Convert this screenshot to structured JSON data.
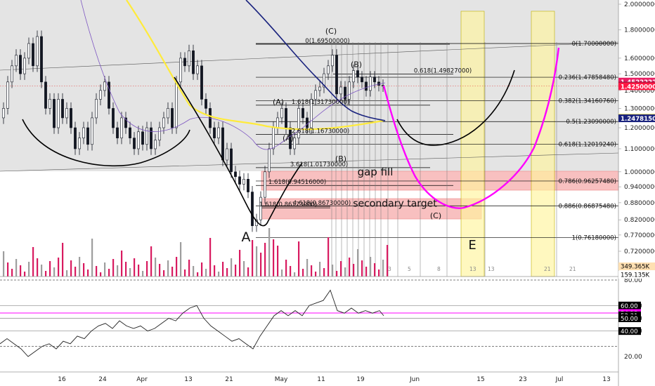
{
  "chart_data": {
    "type": "candlestick",
    "scale": "log",
    "price_axis": {
      "ticks": [
        "2.00000000",
        "1.80000000",
        "1.60000000",
        "1.50000000",
        "1.40000000",
        "1.30000000",
        "1.20000000",
        "1.10000000",
        "1.00000000",
        "0.94000000",
        "0.88000000",
        "0.82000000",
        "0.77000000",
        "0.72000000",
        "0.68000000"
      ],
      "badges": [
        {
          "text": "1.45222222",
          "value": 1.45222222,
          "bg": "#e91e63",
          "fg": "#ffffff"
        },
        {
          "text": "1.42720000",
          "value": 1.4272,
          "bg": "#131722",
          "fg": "#ffffff"
        },
        {
          "text": "1.42500000",
          "value": 1.425,
          "bg": "#ff1744",
          "fg": "#ffffff"
        },
        {
          "text": "1.25043000",
          "value": 1.25043,
          "bg": "#ffeb3b",
          "fg": "#000000"
        },
        {
          "text": "1.24781500",
          "value": 1.247815,
          "bg": "#1a237e",
          "fg": "#ffffff"
        }
      ]
    },
    "time_axis": {
      "ticks": [
        "16",
        "24",
        "Apr",
        "13",
        "21",
        "May",
        "11",
        "19",
        "Jun",
        "15",
        "23",
        "Jul",
        "13"
      ]
    },
    "fib_levels": [
      {
        "label": "0(1.70000000)",
        "value": 1.7
      },
      {
        "label": "0.236(1.47858480)",
        "value": 1.4786
      },
      {
        "label": "0.382(1.34160760)",
        "value": 1.3416
      },
      {
        "label": "0.5(1.23090000)",
        "value": 1.2309
      },
      {
        "label": "0.618(1.12019240)",
        "value": 1.1202
      },
      {
        "label": "0.786(0.96257480)",
        "value": 0.9626
      },
      {
        "label": "0.886(0.86875480)",
        "value": 0.8688
      },
      {
        "label": "1(0.76180000)",
        "value": 0.7618
      }
    ],
    "inner_fib_levels": [
      {
        "label": "0(1.69500000)",
        "value": 1.695
      },
      {
        "label": "0.618(1.49827000)",
        "value": 1.4983
      },
      {
        "label": "1.618(1.31730000)",
        "value": 1.3173
      },
      {
        "label": "2.618(1.16730000)",
        "value": 1.1673
      },
      {
        "label": "3.618(1.01730000)",
        "value": 1.0173
      },
      {
        "label": "1.618(0.94516000)",
        "value": 0.9452
      },
      {
        "label": "1.618(0.86173000)",
        "value": 0.8617
      },
      {
        "label": "4.618(0.86730000)",
        "value": 0.8673
      }
    ],
    "annotations": [
      {
        "text": "gap fill",
        "value": 1.0
      },
      {
        "text": "secondary target",
        "value": 0.878
      },
      {
        "text": "(C)",
        "value": 0.835
      },
      {
        "text": "(C)",
        "value": 1.79
      },
      {
        "text": "(B)",
        "value": 1.56
      },
      {
        "text": "(A)",
        "value": 1.335
      },
      {
        "text": "(B)",
        "value": 1.055
      },
      {
        "text": "(A)",
        "value": 1.15
      },
      {
        "text": "A",
        "value": 0.765
      },
      {
        "text": "E",
        "value": 0.74
      }
    ],
    "volume_axis": {
      "badges": [
        "349.365K",
        "159.135K"
      ]
    },
    "rsi": {
      "ticks": [
        "80.00",
        "60.00",
        "50.00",
        "40.00",
        "20.00"
      ],
      "badges": [
        {
          "text": "60.00",
          "value": 60,
          "bg": "#000000",
          "fg": "#ffffff"
        },
        {
          "text": "54.13",
          "value": 54.13,
          "bg": "#ff00ff",
          "fg": "#ffffff"
        },
        {
          "text": "52.31",
          "value": 52.31,
          "bg": "#000000",
          "fg": "#ffffff"
        },
        {
          "text": "50.00",
          "value": 50,
          "bg": "#000000",
          "fg": "#ffffff"
        },
        {
          "text": "40.00",
          "value": 40,
          "bg": "#000000",
          "fg": "#ffffff"
        }
      ]
    },
    "count_labels": [
      "3",
      "5",
      "8",
      "13",
      "21",
      "13",
      "21"
    ],
    "colors": {
      "candle": "#131722",
      "projection": "#ff00ff",
      "ma_yellow": "#ffeb3b",
      "ma_navy": "#1a237e",
      "zone_pink": "#f8b4b4",
      "zone_yellow": "#fff59d"
    }
  }
}
